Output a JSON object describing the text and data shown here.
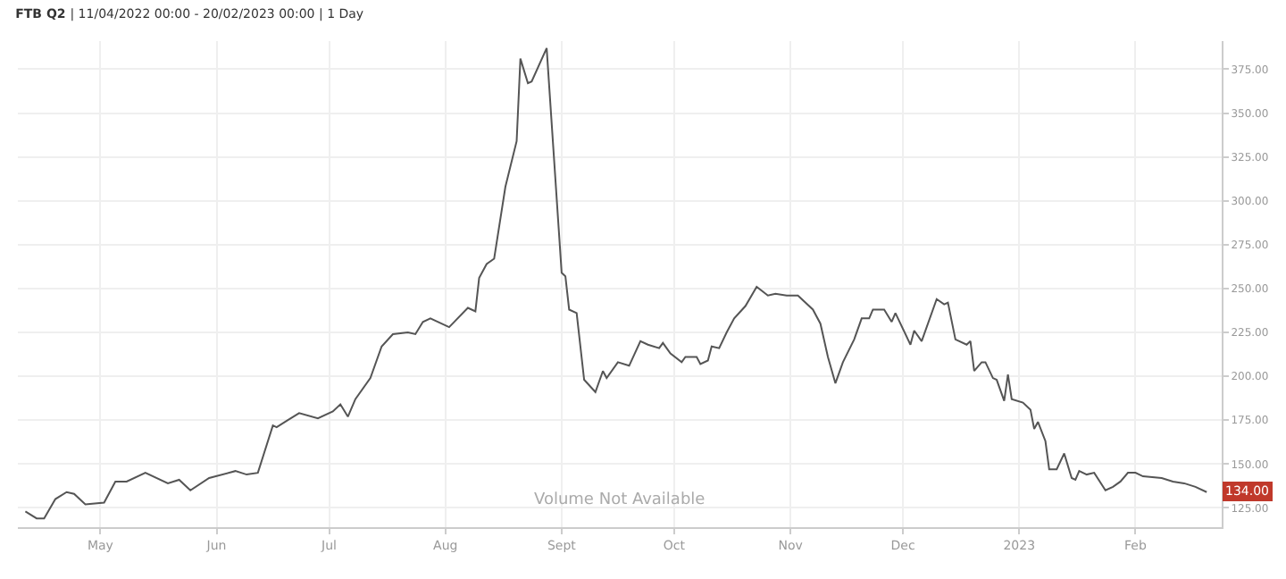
{
  "chart_data": {
    "type": "line",
    "title": "FTB Q2 | 11/04/2022 00:00 - 20/02/2023 00:00 | 1 Day",
    "x": [
      "2022-04-11",
      "2022-04-14",
      "2022-04-16",
      "2022-04-19",
      "2022-04-22",
      "2022-04-24",
      "2022-04-27",
      "2022-05-02",
      "2022-05-05",
      "2022-05-08",
      "2022-05-13",
      "2022-05-19",
      "2022-05-22",
      "2022-05-25",
      "2022-05-30",
      "2022-06-06",
      "2022-06-09",
      "2022-06-12",
      "2022-06-16",
      "2022-06-17",
      "2022-06-20",
      "2022-06-23",
      "2022-06-28",
      "2022-07-02",
      "2022-07-04",
      "2022-07-06",
      "2022-07-08",
      "2022-07-12",
      "2022-07-15",
      "2022-07-18",
      "2022-07-22",
      "2022-07-24",
      "2022-07-26",
      "2022-07-28",
      "2022-08-02",
      "2022-08-07",
      "2022-08-09",
      "2022-08-10",
      "2022-08-12",
      "2022-08-14",
      "2022-08-17",
      "2022-08-20",
      "2022-08-21",
      "2022-08-23",
      "2022-08-24",
      "2022-08-28",
      "2022-09-01",
      "2022-09-02",
      "2022-09-03",
      "2022-09-05",
      "2022-09-07",
      "2022-09-10",
      "2022-09-12",
      "2022-09-13",
      "2022-09-16",
      "2022-09-19",
      "2022-09-22",
      "2022-09-24",
      "2022-09-27",
      "2022-09-28",
      "2022-09-30",
      "2022-10-03",
      "2022-10-04",
      "2022-10-07",
      "2022-10-08",
      "2022-10-10",
      "2022-10-11",
      "2022-10-13",
      "2022-10-15",
      "2022-10-17",
      "2022-10-20",
      "2022-10-23",
      "2022-10-26",
      "2022-10-28",
      "2022-10-31",
      "2022-11-03",
      "2022-11-07",
      "2022-11-09",
      "2022-11-11",
      "2022-11-13",
      "2022-11-15",
      "2022-11-18",
      "2022-11-20",
      "2022-11-22",
      "2022-11-23",
      "2022-11-26",
      "2022-11-28",
      "2022-11-29",
      "2022-12-03",
      "2022-12-04",
      "2022-12-06",
      "2022-12-10",
      "2022-12-12",
      "2022-12-13",
      "2022-12-15",
      "2022-12-18",
      "2022-12-19",
      "2022-12-20",
      "2022-12-22",
      "2022-12-23",
      "2022-12-25",
      "2022-12-26",
      "2022-12-28",
      "2022-12-29",
      "2022-12-30",
      "2023-01-02",
      "2023-01-04",
      "2023-01-05",
      "2023-01-06",
      "2023-01-08",
      "2023-01-09",
      "2023-01-11",
      "2023-01-13",
      "2023-01-15",
      "2023-01-16",
      "2023-01-17",
      "2023-01-19",
      "2023-01-21",
      "2023-01-24",
      "2023-01-26",
      "2023-01-28",
      "2023-01-30",
      "2023-02-01",
      "2023-02-03",
      "2023-02-08",
      "2023-02-11",
      "2023-02-14",
      "2023-02-17",
      "2023-02-20"
    ],
    "series": [
      {
        "color": "#555555",
        "values": [
          123,
          119,
          119,
          130,
          134,
          133,
          127,
          128,
          140,
          140,
          145,
          139,
          141,
          135,
          142,
          146,
          144,
          145,
          172,
          171,
          175,
          179,
          176,
          180,
          184,
          177,
          187,
          199,
          217,
          224,
          225,
          224,
          231,
          233,
          228,
          239,
          237,
          256,
          264,
          267,
          308,
          334,
          381,
          367,
          368,
          387,
          259,
          257,
          238,
          236,
          198,
          191,
          203,
          199,
          208,
          206,
          220,
          218,
          216,
          219,
          213,
          208,
          211,
          211,
          207,
          209,
          217,
          216,
          225,
          233,
          240,
          251,
          246,
          247,
          246,
          246,
          238,
          230,
          211,
          196,
          208,
          221,
          233,
          233,
          238,
          238,
          231,
          236,
          218,
          226,
          220,
          244,
          241,
          242,
          221,
          218,
          220,
          203,
          208,
          208,
          199,
          198,
          186,
          201,
          187,
          185,
          181,
          170,
          174,
          163,
          147,
          147,
          156,
          142,
          141,
          146,
          144,
          145,
          135,
          137,
          140,
          145,
          145,
          143,
          142,
          140,
          139,
          137,
          134
        ]
      }
    ],
    "xlim": [
      "2022-04-09",
      "2023-02-24"
    ],
    "xticks": [
      {
        "value": "2022-05-01",
        "label": "May"
      },
      {
        "value": "2022-06-01",
        "label": "Jun"
      },
      {
        "value": "2022-07-01",
        "label": "Jul"
      },
      {
        "value": "2022-08-01",
        "label": "Aug"
      },
      {
        "value": "2022-09-01",
        "label": "Sept"
      },
      {
        "value": "2022-10-01",
        "label": "Oct"
      },
      {
        "value": "2022-11-01",
        "label": "Nov"
      },
      {
        "value": "2022-12-01",
        "label": "Dec"
      },
      {
        "value": "2023-01-01",
        "label": "2023"
      },
      {
        "value": "2023-02-01",
        "label": "Feb"
      }
    ],
    "ylim": [
      114,
      391
    ],
    "yticks": [
      {
        "value": 125,
        "label": "125.00"
      },
      {
        "value": 150,
        "label": "150.00"
      },
      {
        "value": 175,
        "label": "175.00"
      },
      {
        "value": 200,
        "label": "200.00"
      },
      {
        "value": 225,
        "label": "225.00"
      },
      {
        "value": 250,
        "label": "250.00"
      },
      {
        "value": 275,
        "label": "275.00"
      },
      {
        "value": 300,
        "label": "300.00"
      },
      {
        "value": 325,
        "label": "325.00"
      },
      {
        "value": 350,
        "label": "350.00"
      },
      {
        "value": 375,
        "label": "375.00"
      }
    ],
    "grid": true,
    "legend": false,
    "marker": "none",
    "line_style": "solid",
    "annotations": [
      "Volume Not Available",
      {
        "text": "134.00",
        "x": "2023-02-20",
        "y": 134
      }
    ]
  }
}
